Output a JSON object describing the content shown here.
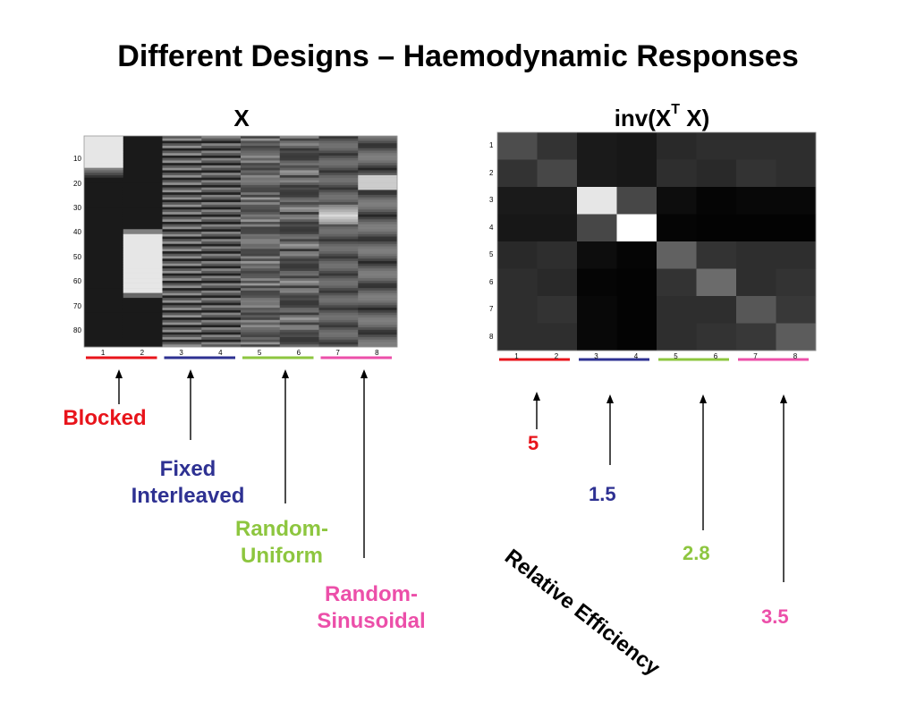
{
  "title": "Different Designs – Haemodynamic Responses",
  "left_plot": {
    "title": "X",
    "y_ticks": [
      "10",
      "20",
      "30",
      "40",
      "50",
      "60",
      "70",
      "80"
    ],
    "x_ticks": [
      "1",
      "2",
      "3",
      "4",
      "5",
      "6",
      "7",
      "8"
    ]
  },
  "right_plot": {
    "title_main": "inv(X",
    "title_sup": "T",
    "title_end": " X)",
    "y_ticks": [
      "1",
      "2",
      "3",
      "4",
      "5",
      "6",
      "7",
      "8"
    ],
    "x_ticks": [
      "1",
      "2",
      "3",
      "4",
      "5",
      "6",
      "7",
      "8"
    ],
    "matrix": [
      [
        0.3,
        0.2,
        0.1,
        0.09,
        0.16,
        0.18,
        0.18,
        0.18
      ],
      [
        0.2,
        0.28,
        0.1,
        0.09,
        0.18,
        0.16,
        0.2,
        0.18
      ],
      [
        0.1,
        0.1,
        0.9,
        0.28,
        0.05,
        0.02,
        0.03,
        0.03
      ],
      [
        0.09,
        0.09,
        0.28,
        1.0,
        0.02,
        0.01,
        0.01,
        0.01
      ],
      [
        0.16,
        0.18,
        0.05,
        0.02,
        0.38,
        0.2,
        0.18,
        0.18
      ],
      [
        0.18,
        0.16,
        0.02,
        0.01,
        0.2,
        0.42,
        0.18,
        0.2
      ],
      [
        0.18,
        0.2,
        0.03,
        0.01,
        0.18,
        0.18,
        0.34,
        0.22
      ],
      [
        0.18,
        0.18,
        0.03,
        0.01,
        0.18,
        0.2,
        0.22,
        0.36
      ]
    ]
  },
  "designs": [
    {
      "label": "Blocked",
      "color": "#e8141b",
      "efficiency": "5"
    },
    {
      "label": "Fixed Interleaved",
      "color": "#2e3192",
      "efficiency": "1.5"
    },
    {
      "label": "Random-Uniform",
      "color": "#8dc63f",
      "efficiency": "2.8"
    },
    {
      "label": "Random-Sinusoidal",
      "color": "#ec4fa9",
      "efficiency": "3.5"
    }
  ],
  "labels": {
    "blocked": "Blocked",
    "fixed_1": "Fixed",
    "fixed_2": "Interleaved",
    "uniform_1": "Random-",
    "uniform_2": "Uniform",
    "sinus_1": "Random-",
    "sinus_2": "Sinusoidal",
    "relative_efficiency": "Relative Efficiency"
  },
  "efficiency": {
    "blocked": "5",
    "fixed": "1.5",
    "uniform": "2.8",
    "sinusoidal": "3.5"
  }
}
